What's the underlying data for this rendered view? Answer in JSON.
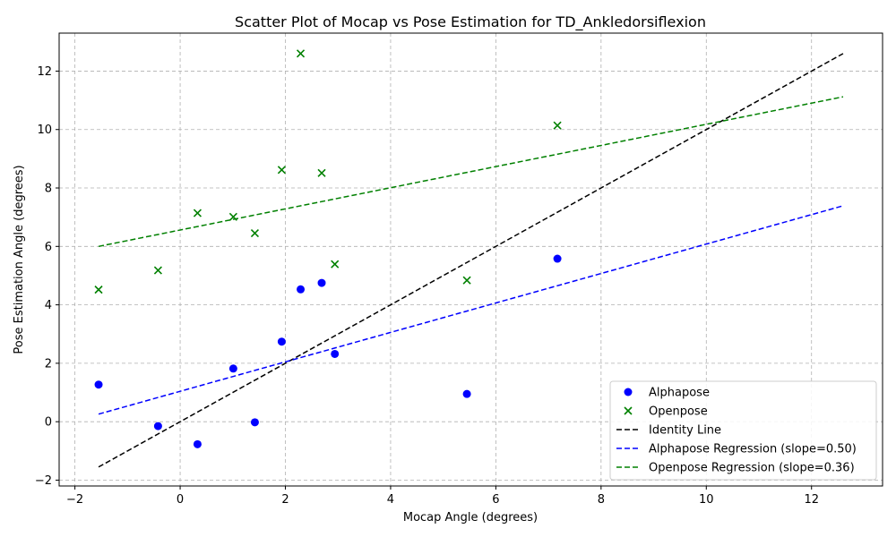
{
  "chart_data": {
    "type": "scatter",
    "title": "Scatter Plot of Mocap vs Pose Estimation for TD_Ankledorsiflexion",
    "xlabel": "Mocap Angle (degrees)",
    "ylabel": "Pose Estimation Angle (degrees)",
    "xlim": [
      -2.3,
      13.35
    ],
    "ylim": [
      -2.2,
      13.3
    ],
    "xticks": [
      -2,
      0,
      2,
      4,
      6,
      8,
      10,
      12
    ],
    "yticks": [
      -2,
      0,
      2,
      4,
      6,
      8,
      10,
      12
    ],
    "grid": true,
    "legend_position": "bottom-right",
    "series": [
      {
        "name": "Alphapose",
        "kind": "scatter",
        "marker": "circle",
        "color": "#0000ff",
        "points": [
          [
            -1.55,
            1.27
          ],
          [
            -0.42,
            -0.15
          ],
          [
            0.33,
            -0.77
          ],
          [
            1.01,
            1.82
          ],
          [
            1.42,
            -0.02
          ],
          [
            1.93,
            2.74
          ],
          [
            2.29,
            4.53
          ],
          [
            2.69,
            4.75
          ],
          [
            2.94,
            2.32
          ],
          [
            5.45,
            0.95
          ],
          [
            7.17,
            5.58
          ]
        ]
      },
      {
        "name": "Openpose",
        "kind": "scatter",
        "marker": "x",
        "color": "#008000",
        "points": [
          [
            -1.55,
            4.52
          ],
          [
            -0.42,
            5.18
          ],
          [
            0.33,
            7.14
          ],
          [
            1.01,
            7.01
          ],
          [
            1.42,
            6.45
          ],
          [
            1.93,
            8.62
          ],
          [
            2.29,
            12.6
          ],
          [
            2.69,
            8.51
          ],
          [
            2.94,
            5.39
          ],
          [
            5.45,
            4.84
          ],
          [
            7.17,
            10.14
          ]
        ]
      },
      {
        "name": "Identity Line",
        "kind": "line",
        "dash": true,
        "color": "#000000",
        "points": [
          [
            -1.55,
            -1.55
          ],
          [
            12.6,
            12.6
          ]
        ]
      },
      {
        "name": "Alphapose Regression (slope=0.50)",
        "kind": "line",
        "dash": true,
        "color": "#0000ff",
        "points": [
          [
            -1.55,
            0.26
          ],
          [
            12.6,
            7.39
          ]
        ]
      },
      {
        "name": "Openpose Regression (slope=0.36)",
        "kind": "line",
        "dash": true,
        "color": "#008000",
        "points": [
          [
            -1.55,
            6.0
          ],
          [
            12.6,
            11.12
          ]
        ]
      }
    ]
  }
}
